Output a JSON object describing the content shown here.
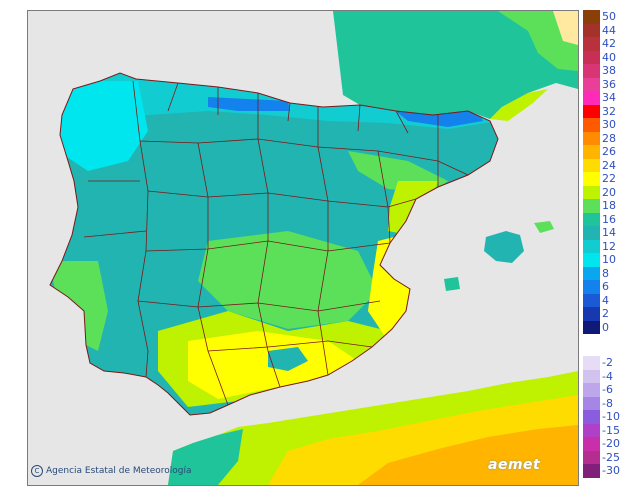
{
  "credit": {
    "text": "Agencia Estatal de Meteorología",
    "symbol": "C"
  },
  "logo": {
    "text": "aemet"
  },
  "legend": {
    "positive": [
      {
        "label": "50",
        "color": "#8a3f0a"
      },
      {
        "label": "44",
        "color": "#a5322a"
      },
      {
        "label": "42",
        "color": "#b8313c"
      },
      {
        "label": "40",
        "color": "#c82f55"
      },
      {
        "label": "38",
        "color": "#d83575"
      },
      {
        "label": "36",
        "color": "#ea3f98"
      },
      {
        "label": "34",
        "color": "#ff2bb8"
      },
      {
        "label": "32",
        "color": "#ff0000"
      },
      {
        "label": "30",
        "color": "#ff5a00"
      },
      {
        "label": "28",
        "color": "#ff8c00"
      },
      {
        "label": "26",
        "color": "#ffb400"
      },
      {
        "label": "24",
        "color": "#ffdc00"
      },
      {
        "label": "22",
        "color": "#ffff00"
      },
      {
        "label": "20",
        "color": "#bff200"
      },
      {
        "label": "18",
        "color": "#5ce05a"
      },
      {
        "label": "16",
        "color": "#1fc49a"
      },
      {
        "label": "14",
        "color": "#22b4b0"
      },
      {
        "label": "12",
        "color": "#11cdd2"
      },
      {
        "label": "10",
        "color": "#00e6ee"
      },
      {
        "label": "8",
        "color": "#0aa6f0"
      },
      {
        "label": "6",
        "color": "#1482ec"
      },
      {
        "label": "4",
        "color": "#1a5ad6"
      },
      {
        "label": "2",
        "color": "#1838b0"
      },
      {
        "label": "0",
        "color": "#0f1a78"
      }
    ],
    "negative": [
      {
        "label": "-2",
        "color": "#e6dcf6"
      },
      {
        "label": "-4",
        "color": "#d2c2f0"
      },
      {
        "label": "-6",
        "color": "#bea6ea"
      },
      {
        "label": "-8",
        "color": "#a585e6"
      },
      {
        "label": "-10",
        "color": "#8a5cde"
      },
      {
        "label": "-15",
        "color": "#b040c8"
      },
      {
        "label": "-20",
        "color": "#c82fa8"
      },
      {
        "label": "-25",
        "color": "#b52d8e"
      },
      {
        "label": "-30",
        "color": "#80207a"
      }
    ]
  }
}
